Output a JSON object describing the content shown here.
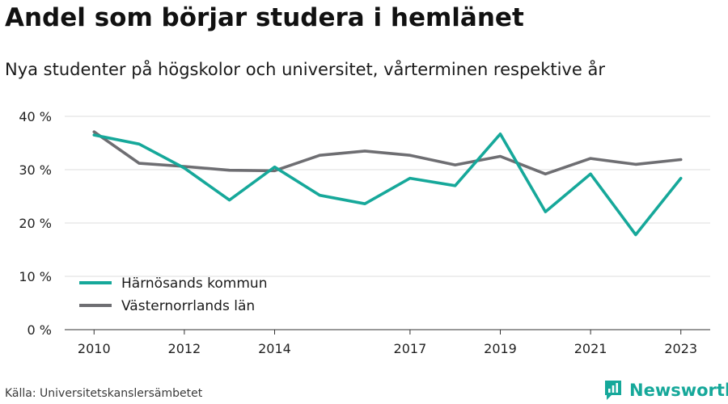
{
  "title": "Andel som börjar studera i hemlänet",
  "subtitle": "Nya studenter på högskolor och universitet, vårterminen respektive år",
  "source": "Källa: Universitetskanslersämbetet",
  "brand": {
    "name": "Newsworthy",
    "icon": "bar-chart-badge-icon",
    "color": "#16a89a"
  },
  "chart_data": {
    "type": "line",
    "x": [
      2010,
      2011,
      2012,
      2013,
      2014,
      2015,
      2016,
      2017,
      2018,
      2019,
      2020,
      2021,
      2022,
      2023
    ],
    "x_ticks": [
      2010,
      2012,
      2014,
      2017,
      2019,
      2021,
      2023
    ],
    "y_ticks": [
      0,
      10,
      20,
      30,
      40
    ],
    "y_tick_labels": [
      "0 %",
      "10 %",
      "20 %",
      "30 %",
      "40 %"
    ],
    "ylim": [
      0,
      40
    ],
    "xlim": [
      2009.35,
      2023.65
    ],
    "grid": true,
    "legend_position": "bottom-left",
    "series": [
      {
        "name": "Härnösands kommun",
        "color": "#16a89a",
        "values": [
          36.5,
          34.8,
          30.3,
          24.3,
          30.5,
          25.2,
          23.6,
          28.4,
          27.0,
          36.7,
          22.1,
          29.2,
          17.8,
          28.4
        ]
      },
      {
        "name": "Västernorrlands län",
        "color": "#6e6e72",
        "values": [
          37.1,
          31.2,
          30.6,
          29.9,
          29.8,
          32.7,
          33.5,
          32.7,
          30.9,
          32.5,
          29.2,
          32.1,
          31.0,
          31.9
        ]
      }
    ]
  }
}
